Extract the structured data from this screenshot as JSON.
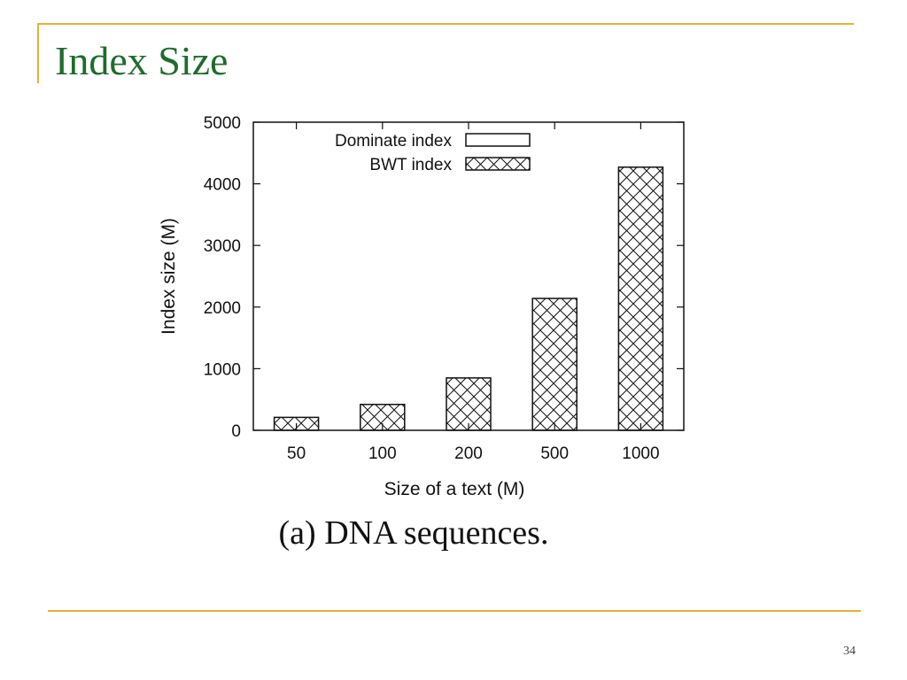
{
  "slide": {
    "title": "Index Size",
    "page_number": "34",
    "accent_color": "#e2b23c",
    "title_color": "#1f6b2b"
  },
  "figure": {
    "caption": "(a) DNA sequences."
  },
  "chart_data": {
    "type": "bar",
    "xlabel": "Size of a text (M)",
    "ylabel": "Index size (M)",
    "categories": [
      "50",
      "100",
      "200",
      "500",
      "1000"
    ],
    "ylim": [
      0,
      5000
    ],
    "yticks": [
      0,
      1000,
      2000,
      3000,
      4000,
      5000
    ],
    "ytick_labels": [
      "0",
      "1000",
      "2000",
      "3000",
      "4000",
      "5000"
    ],
    "legend_position": "top-left",
    "series": [
      {
        "name": "Dominate index",
        "pattern": "none",
        "values": [
          0,
          0,
          0,
          0,
          0
        ]
      },
      {
        "name": "BWT index",
        "pattern": "crosshatch",
        "values": [
          210,
          420,
          850,
          2140,
          4270
        ]
      }
    ]
  }
}
